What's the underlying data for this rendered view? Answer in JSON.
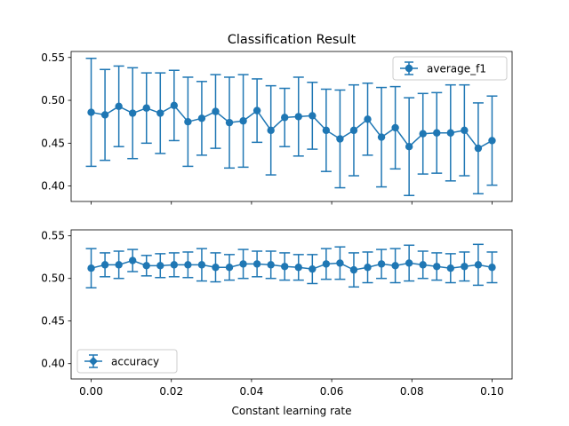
{
  "chart_data": [
    {
      "type": "line",
      "errorbars": true,
      "title": "Classification Result",
      "xlabel": "",
      "ylabel": "",
      "xlim": [
        -0.005,
        0.105
      ],
      "ylim": [
        0.382,
        0.557
      ],
      "xticks": [
        0.0,
        0.02,
        0.04,
        0.06,
        0.08,
        0.1
      ],
      "xtick_labels_visible": false,
      "yticks": [
        0.4,
        0.45,
        0.5,
        0.55
      ],
      "ytick_labels": [
        "0.40",
        "0.45",
        "0.50",
        "0.55"
      ],
      "legend": {
        "placement": "upper right",
        "marker": "o"
      },
      "grid": false,
      "color": "#1f77b4",
      "series": [
        {
          "name": "average_f1",
          "x": [
            0.0,
            0.003448,
            0.006897,
            0.010345,
            0.013793,
            0.017241,
            0.02069,
            0.024138,
            0.027586,
            0.031034,
            0.034483,
            0.037931,
            0.041379,
            0.044828,
            0.048276,
            0.051724,
            0.055172,
            0.058621,
            0.062069,
            0.065517,
            0.068966,
            0.072414,
            0.075862,
            0.07931,
            0.082759,
            0.086207,
            0.089655,
            0.093103,
            0.096552,
            0.1
          ],
          "y": [
            0.486,
            0.483,
            0.493,
            0.485,
            0.491,
            0.485,
            0.494,
            0.475,
            0.479,
            0.487,
            0.474,
            0.476,
            0.488,
            0.465,
            0.48,
            0.481,
            0.482,
            0.465,
            0.455,
            0.465,
            0.478,
            0.457,
            0.468,
            0.446,
            0.461,
            0.462,
            0.462,
            0.465,
            0.444,
            0.453
          ],
          "yerr": [
            0.063,
            0.053,
            0.047,
            0.053,
            0.041,
            0.047,
            0.041,
            0.052,
            0.043,
            0.043,
            0.053,
            0.054,
            0.037,
            0.052,
            0.034,
            0.046,
            0.039,
            0.048,
            0.057,
            0.053,
            0.042,
            0.058,
            0.048,
            0.057,
            0.047,
            0.047,
            0.056,
            0.053,
            0.053,
            0.052
          ]
        }
      ]
    },
    {
      "type": "line",
      "errorbars": true,
      "title": "",
      "xlabel": "Constant learning rate",
      "ylabel": "",
      "xlim": [
        -0.005,
        0.105
      ],
      "ylim": [
        0.382,
        0.557
      ],
      "xticks": [
        0.0,
        0.02,
        0.04,
        0.06,
        0.08,
        0.1
      ],
      "xtick_labels": [
        "0.00",
        "0.02",
        "0.04",
        "0.06",
        "0.08",
        "0.10"
      ],
      "yticks": [
        0.4,
        0.45,
        0.5,
        0.55
      ],
      "ytick_labels": [
        "0.40",
        "0.45",
        "0.50",
        "0.55"
      ],
      "legend": {
        "placement": "lower left",
        "marker": "D"
      },
      "grid": false,
      "color": "#1f77b4",
      "series": [
        {
          "name": "accuracy",
          "x": [
            0.0,
            0.003448,
            0.006897,
            0.010345,
            0.013793,
            0.017241,
            0.02069,
            0.024138,
            0.027586,
            0.031034,
            0.034483,
            0.037931,
            0.041379,
            0.044828,
            0.048276,
            0.051724,
            0.055172,
            0.058621,
            0.062069,
            0.065517,
            0.068966,
            0.072414,
            0.075862,
            0.07931,
            0.082759,
            0.086207,
            0.089655,
            0.093103,
            0.096552,
            0.1
          ],
          "y": [
            0.512,
            0.516,
            0.516,
            0.521,
            0.515,
            0.515,
            0.516,
            0.516,
            0.516,
            0.513,
            0.513,
            0.517,
            0.517,
            0.516,
            0.514,
            0.513,
            0.511,
            0.517,
            0.518,
            0.51,
            0.513,
            0.517,
            0.515,
            0.518,
            0.516,
            0.514,
            0.512,
            0.514,
            0.516,
            0.513
          ],
          "yerr": [
            0.023,
            0.014,
            0.016,
            0.013,
            0.012,
            0.014,
            0.014,
            0.015,
            0.019,
            0.017,
            0.015,
            0.017,
            0.015,
            0.016,
            0.016,
            0.015,
            0.017,
            0.018,
            0.019,
            0.02,
            0.018,
            0.017,
            0.02,
            0.021,
            0.016,
            0.016,
            0.017,
            0.017,
            0.024,
            0.018
          ]
        }
      ]
    }
  ]
}
